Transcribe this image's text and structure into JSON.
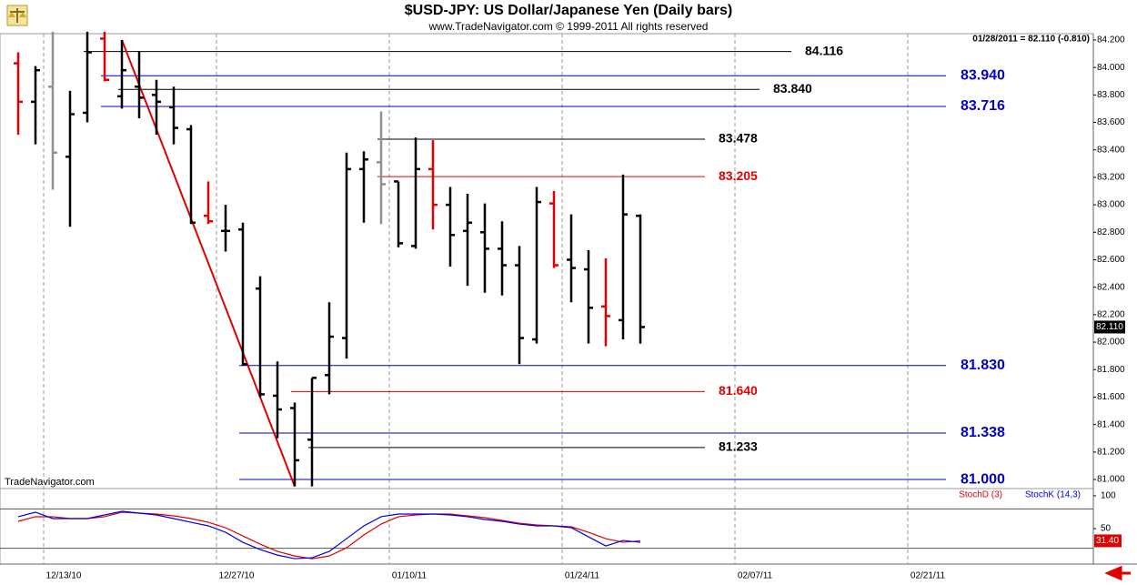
{
  "chart_data": {
    "type": "ohlc",
    "title": "$USD-JPY:  US Dollar/Japanese Yen  (Daily bars)",
    "subtitle": "www.TradeNavigator.com © 1999-2011 All rights reserved",
    "watermark": "TradeNavigator.com",
    "readout": "01/28/2011 = 82.110 (-0.810)",
    "categories": [
      null,
      null,
      "12/13/10",
      null,
      null,
      null,
      null,
      null,
      null,
      null,
      null,
      null,
      "12/27/10",
      null,
      null,
      null,
      null,
      null,
      null,
      null,
      null,
      null,
      "01/10/11",
      null,
      null,
      null,
      null,
      null,
      null,
      null,
      null,
      null,
      "01/24/11",
      null,
      null,
      null,
      null,
      null,
      null,
      null,
      null,
      null,
      "02/07/11",
      null,
      null,
      null,
      null,
      null,
      null,
      null,
      null,
      null,
      "02/21/11",
      null,
      null,
      null,
      null,
      null,
      null,
      null,
      null,
      null,
      null
    ],
    "open": [
      84.03,
      83.75,
      83.86,
      83.35,
      83.67,
      84.21,
      83.79,
      83.86,
      83.8,
      83.71,
      83.55,
      82.92,
      82.81,
      82.82,
      82.39,
      81.61,
      81.52,
      81.29,
      81.76,
      82.03,
      83.26,
      83.31,
      83.17,
      82.7,
      83.26,
      83.0,
      82.81,
      82.8,
      82.68,
      82.56,
      82.02,
      83.01,
      82.6,
      82.53,
      82.26,
      82.16,
      82.92,
      null,
      null,
      null,
      null,
      null,
      null,
      null,
      null,
      null,
      null,
      null,
      null,
      null,
      null,
      null,
      null,
      null,
      null,
      null,
      null,
      null,
      null,
      null,
      null,
      null,
      null
    ],
    "high": [
      84.11,
      84.01,
      84.26,
      83.83,
      84.26,
      84.26,
      84.2,
      84.12,
      83.91,
      83.86,
      83.58,
      83.17,
      83.0,
      82.87,
      82.48,
      81.86,
      81.56,
      81.74,
      82.29,
      83.38,
      83.39,
      83.68,
      83.17,
      83.49,
      83.47,
      83.13,
      83.08,
      83.01,
      82.88,
      82.7,
      83.13,
      83.1,
      82.93,
      82.67,
      82.61,
      83.22,
      82.93,
      null,
      null,
      null,
      null,
      null,
      null,
      null,
      null,
      null,
      null,
      null,
      null,
      null,
      null,
      null,
      null,
      null,
      null,
      null,
      null,
      null,
      null,
      null,
      null,
      null,
      null
    ],
    "low": [
      83.51,
      83.44,
      83.11,
      82.84,
      83.6,
      83.9,
      83.7,
      83.63,
      83.51,
      83.44,
      82.86,
      82.86,
      82.66,
      81.83,
      81.6,
      81.3,
      80.95,
      80.95,
      81.62,
      81.88,
      82.87,
      82.86,
      82.69,
      82.68,
      82.82,
      82.55,
      82.41,
      82.36,
      82.34,
      81.84,
      81.99,
      82.54,
      82.29,
      81.99,
      81.97,
      82.02,
      81.99,
      null,
      null,
      null,
      null,
      null,
      null,
      null,
      null,
      null,
      null,
      null,
      null,
      null,
      null,
      null,
      null,
      null,
      null,
      null,
      null,
      null,
      null,
      null,
      null,
      null,
      null
    ],
    "close": [
      83.75,
      83.98,
      83.38,
      83.66,
      84.11,
      83.91,
      83.98,
      83.78,
      83.75,
      83.56,
      82.87,
      82.88,
      82.81,
      81.84,
      81.62,
      81.51,
      81.14,
      81.74,
      82.04,
      83.26,
      83.33,
      83.15,
      82.72,
      83.26,
      83.0,
      82.78,
      82.87,
      82.68,
      82.56,
      82.03,
      83.02,
      82.56,
      82.54,
      82.25,
      82.19,
      82.93,
      82.11,
      null,
      null,
      null,
      null,
      null,
      null,
      null,
      null,
      null,
      null,
      null,
      null,
      null,
      null,
      null,
      null,
      null,
      null,
      null,
      null,
      null,
      null,
      null,
      null,
      null,
      null
    ],
    "colors": [
      "#e00000",
      "#000000",
      "#909090",
      "#000000",
      "#000000",
      "#e00000",
      "#000000",
      "#000000",
      "#000000",
      "#000000",
      "#000000",
      "#e00000",
      "#000000",
      "#000000",
      "#000000",
      "#000000",
      "#000000",
      "#000000",
      "#000000",
      "#000000",
      "#000000",
      "#909090",
      "#000000",
      "#000000",
      "#e00000",
      "#000000",
      "#000000",
      "#000000",
      "#000000",
      "#000000",
      "#000000",
      "#e00000",
      "#000000",
      "#000000",
      "#e00000",
      "#000000",
      "#000000",
      null,
      null,
      null,
      null,
      null,
      null,
      null,
      null,
      null,
      null,
      null,
      null,
      null,
      null,
      null,
      null,
      null,
      null,
      null,
      null,
      null,
      null,
      null,
      null,
      null,
      null
    ],
    "trendline_color": "#e00000",
    "ylim": [
      80.934,
      84.246
    ],
    "yticks": [
      {
        "value": 81,
        "label": "81.000"
      },
      {
        "value": 81.2,
        "label": "81.200"
      },
      {
        "value": 81.4,
        "label": "81.400"
      },
      {
        "value": 81.6,
        "label": "81.600"
      },
      {
        "value": 81.8,
        "label": "81.800"
      },
      {
        "value": 82,
        "label": "82.000"
      },
      {
        "value": 82.2,
        "label": "82.200"
      },
      {
        "value": 82.4,
        "label": "82.400"
      },
      {
        "value": 82.6,
        "label": "82.600"
      },
      {
        "value": 82.8,
        "label": "82.800"
      },
      {
        "value": 83,
        "label": "83.000"
      },
      {
        "value": 83.2,
        "label": "83.200"
      },
      {
        "value": 83.4,
        "label": "83.400"
      },
      {
        "value": 83.6,
        "label": "83.600"
      },
      {
        "value": 83.8,
        "label": "83.800"
      },
      {
        "value": 84,
        "label": "84.000"
      },
      {
        "value": 84.2,
        "label": "84.200"
      }
    ],
    "price_marker": {
      "value": 82.11,
      "label": "82.110"
    },
    "levels": [
      {
        "value": 84.116,
        "label": "84.116",
        "color": "#000000",
        "start": 4
      },
      {
        "value": 83.94,
        "label": "83.940",
        "color": "#0000cc",
        "start": 5
      },
      {
        "value": 83.84,
        "label": "83.840",
        "color": "#000000",
        "start": 6
      },
      {
        "value": 83.716,
        "label": "83.716",
        "color": "#0000cc",
        "start": 5
      },
      {
        "value": 83.478,
        "label": "83.478",
        "color": "#000000",
        "start": 21
      },
      {
        "value": 83.205,
        "label": "83.205",
        "color": "#e00000",
        "start": 21
      },
      {
        "value": 81.83,
        "label": "81.830",
        "color": "#0000cc",
        "start": 13
      },
      {
        "value": 81.64,
        "label": "81.640",
        "color": "#e00000",
        "start": 16
      },
      {
        "value": 81.338,
        "label": "81.338",
        "color": "#0000cc",
        "start": 13
      },
      {
        "value": 81.233,
        "label": "81.233",
        "color": "#000000",
        "start": 17
      },
      {
        "value": 81,
        "label": "81.000",
        "color": "#0000cc",
        "start": 13
      }
    ],
    "stochastic": {
      "ylim": [
        -4,
        111
      ],
      "yticks": [
        100,
        50
      ],
      "bands": [
        80,
        20
      ],
      "marker": {
        "value": 31.4,
        "label": "31.40"
      },
      "series": [
        {
          "name": "StochD (3)",
          "color": "#e00000",
          "values": [
            61.1,
            68.1,
            68.1,
            65.3,
            65.3,
            68.1,
            75.0,
            73.6,
            72.2,
            69.4,
            65.3,
            59.7,
            51.4,
            38.9,
            26.4,
            15.3,
            8.3,
            4.2,
            8.3,
            20.8,
            40.3,
            56.9,
            68.1,
            70.8,
            72.2,
            72.2,
            69.4,
            66.7,
            62.5,
            58.3,
            55.6,
            54.2,
            52.8,
            44.4,
            34.7,
            29.2,
            31.4,
            null,
            null,
            null,
            null,
            null,
            null,
            null,
            null,
            null,
            null,
            null,
            null,
            null,
            null,
            null,
            null,
            null,
            null,
            null,
            null,
            null,
            null,
            null,
            null,
            null,
            null
          ]
        },
        {
          "name": "StochK (14,3)",
          "color": "#0000dd",
          "values": [
            68.1,
            75.0,
            65.3,
            65.3,
            65.3,
            70.8,
            76.4,
            73.6,
            70.8,
            65.3,
            59.7,
            54.2,
            44.4,
            29.2,
            18.1,
            9.7,
            4.2,
            5.6,
            15.3,
            34.7,
            54.2,
            68.1,
            72.2,
            72.2,
            72.2,
            70.8,
            68.1,
            63.9,
            61.1,
            56.9,
            54.2,
            54.2,
            51.4,
            37.5,
            23.6,
            31.9,
            29.2,
            null,
            null,
            null,
            null,
            null,
            null,
            null,
            null,
            null,
            null,
            null,
            null,
            null,
            null,
            null,
            null,
            null,
            null,
            null,
            null,
            null,
            null,
            null,
            null,
            null,
            null
          ]
        }
      ]
    }
  }
}
